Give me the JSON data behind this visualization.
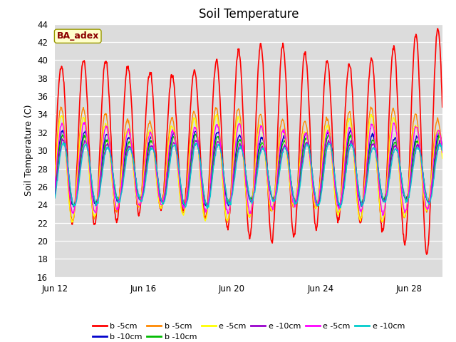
{
  "title": "Soil Temperature",
  "ylabel": "Soil Temperature (C)",
  "ylim": [
    16,
    44
  ],
  "yticks": [
    16,
    18,
    20,
    22,
    24,
    26,
    28,
    30,
    32,
    34,
    36,
    38,
    40,
    42,
    44
  ],
  "xtick_labels": [
    "Jun 12",
    "Jun 16",
    "Jun 20",
    "Jun 24",
    "Jun 28"
  ],
  "xtick_positions": [
    0,
    4,
    8,
    12,
    16
  ],
  "n_days": 17.5,
  "annotation_text": "BA_adex",
  "annotation_color": "#8B0000",
  "annotation_bg": "#FFFFCC",
  "annotation_edge": "#999900",
  "bg_color": "#DCDCDC",
  "legend_entries": [
    {
      "label": "b -5cm",
      "color": "#FF0000"
    },
    {
      "label": "b -10cm",
      "color": "#0000CC"
    },
    {
      "label": "b -5cm",
      "color": "#FF8800"
    },
    {
      "label": "b -10cm",
      "color": "#00BB00"
    },
    {
      "label": "e -5cm",
      "color": "#FFFF00"
    },
    {
      "label": "e -10cm",
      "color": "#9900CC"
    },
    {
      "label": "e -5cm",
      "color": "#FF00FF"
    },
    {
      "label": "e -10cm",
      "color": "#00CCCC"
    }
  ]
}
